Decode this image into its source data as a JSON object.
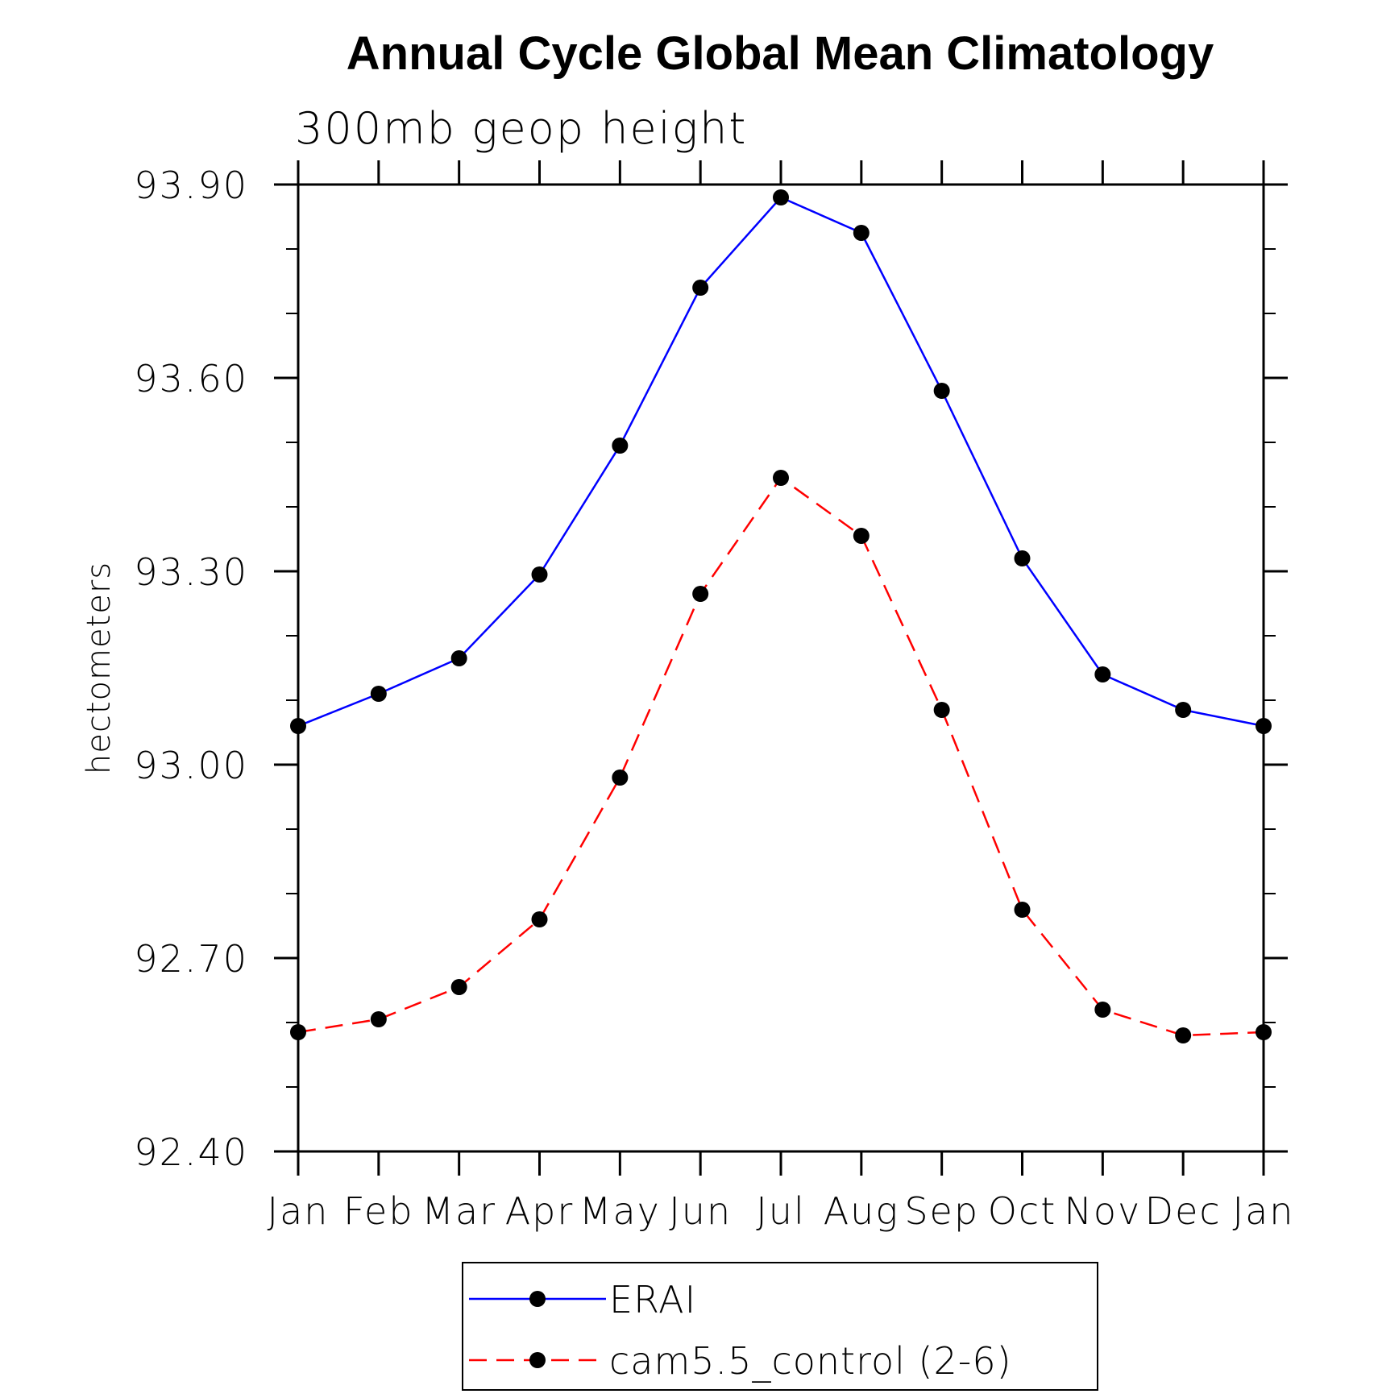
{
  "chart_data": {
    "type": "line",
    "title": "Annual Cycle Global Mean Climatology",
    "subtitle": "300mb geop height",
    "ylabel": "hectometers",
    "xlabel": "",
    "categories": [
      "Jan",
      "Feb",
      "Mar",
      "Apr",
      "May",
      "Jun",
      "Jul",
      "Aug",
      "Sep",
      "Oct",
      "Nov",
      "Dec",
      "Jan"
    ],
    "ylim": [
      92.4,
      93.9
    ],
    "yticks": [
      "92.40",
      "92.70",
      "93.00",
      "93.30",
      "93.60",
      "93.90"
    ],
    "grid": false,
    "legend_position": "bottom",
    "series": [
      {
        "name": "ERAI",
        "color": "#0000ff",
        "line_style": "solid",
        "values": [
          93.06,
          93.11,
          93.165,
          93.295,
          93.495,
          93.74,
          93.88,
          93.825,
          93.58,
          93.32,
          93.14,
          93.085,
          93.06
        ]
      },
      {
        "name": "cam5.5_control (2-6)",
        "color": "#ff0000",
        "line_style": "dashed",
        "values": [
          92.585,
          92.605,
          92.655,
          92.76,
          92.98,
          93.265,
          93.445,
          93.355,
          93.085,
          92.775,
          92.62,
          92.58,
          92.585
        ]
      }
    ]
  }
}
